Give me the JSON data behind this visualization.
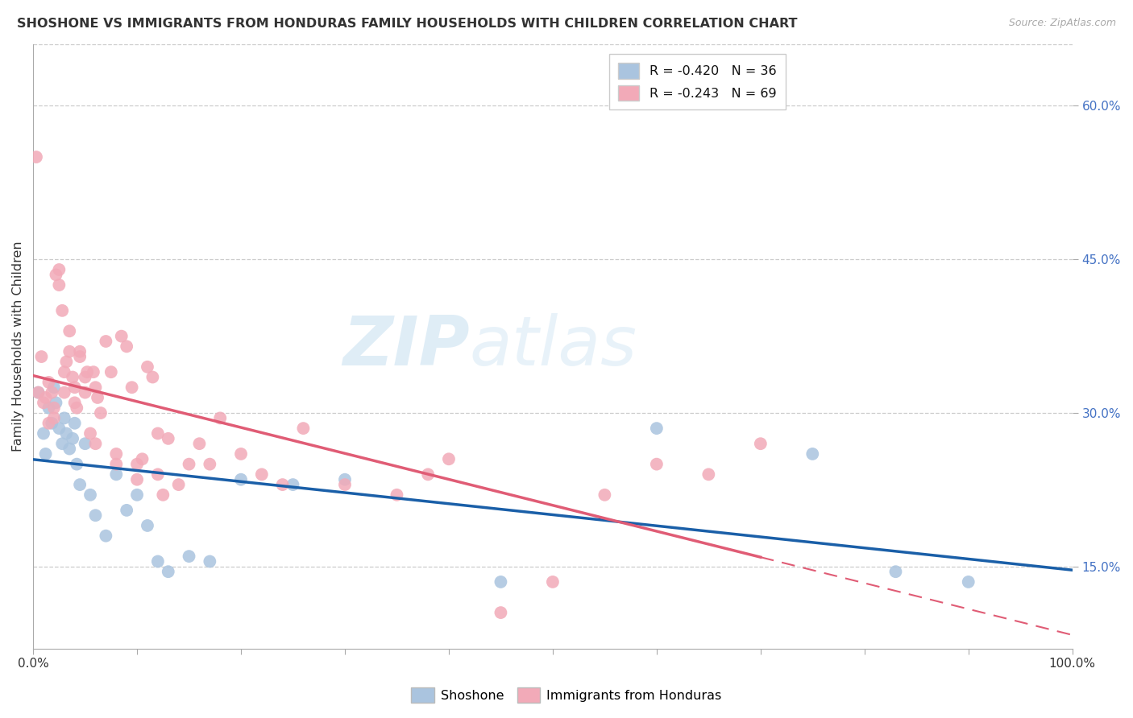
{
  "title": "SHOSHONE VS IMMIGRANTS FROM HONDURAS FAMILY HOUSEHOLDS WITH CHILDREN CORRELATION CHART",
  "source": "Source: ZipAtlas.com",
  "ylabel": "Family Households with Children",
  "xlim": [
    0.0,
    100.0
  ],
  "ylim": [
    7.0,
    66.0
  ],
  "ytick_values": [
    15.0,
    30.0,
    45.0,
    60.0
  ],
  "xtick_values": [
    0.0,
    10.0,
    20.0,
    30.0,
    40.0,
    50.0,
    60.0,
    70.0,
    80.0,
    90.0,
    100.0
  ],
  "watermark_zip": "ZIP",
  "watermark_atlas": "atlas",
  "shoshone_label": "R = -0.420   N = 36",
  "honduras_label": "R = -0.243   N = 69",
  "shoshone_dot_color": "#aac4df",
  "honduras_dot_color": "#f2aab8",
  "shoshone_line_color": "#1a5fa8",
  "honduras_line_color": "#e05c75",
  "legend_shoshone": "Shoshone",
  "legend_honduras": "Immigrants from Honduras",
  "shoshone_x": [
    0.5,
    1.0,
    1.2,
    1.5,
    1.8,
    2.0,
    2.2,
    2.5,
    2.8,
    3.0,
    3.2,
    3.5,
    3.8,
    4.0,
    4.2,
    4.5,
    5.0,
    5.5,
    6.0,
    7.0,
    8.0,
    9.0,
    10.0,
    11.0,
    12.0,
    13.0,
    15.0,
    17.0,
    20.0,
    25.0,
    30.0,
    45.0,
    60.0,
    75.0,
    83.0,
    90.0
  ],
  "shoshone_y": [
    32.0,
    28.0,
    26.0,
    30.5,
    29.0,
    32.5,
    31.0,
    28.5,
    27.0,
    29.5,
    28.0,
    26.5,
    27.5,
    29.0,
    25.0,
    23.0,
    27.0,
    22.0,
    20.0,
    18.0,
    24.0,
    20.5,
    22.0,
    19.0,
    15.5,
    14.5,
    16.0,
    15.5,
    23.5,
    23.0,
    23.5,
    13.5,
    28.5,
    26.0,
    14.5,
    13.5
  ],
  "honduras_x": [
    0.3,
    0.5,
    0.8,
    1.0,
    1.2,
    1.5,
    1.5,
    1.8,
    2.0,
    2.0,
    2.2,
    2.5,
    2.5,
    2.8,
    3.0,
    3.0,
    3.2,
    3.5,
    3.5,
    3.8,
    4.0,
    4.0,
    4.2,
    4.5,
    4.5,
    5.0,
    5.0,
    5.2,
    5.5,
    5.8,
    6.0,
    6.0,
    6.2,
    6.5,
    7.0,
    7.5,
    8.0,
    8.0,
    8.5,
    9.0,
    9.5,
    10.0,
    10.0,
    10.5,
    11.0,
    11.5,
    12.0,
    12.0,
    12.5,
    13.0,
    14.0,
    15.0,
    16.0,
    17.0,
    18.0,
    20.0,
    22.0,
    24.0,
    26.0,
    30.0,
    35.0,
    38.0,
    40.0,
    45.0,
    50.0,
    55.0,
    60.0,
    65.0,
    70.0
  ],
  "honduras_y": [
    55.0,
    32.0,
    35.5,
    31.0,
    31.5,
    33.0,
    29.0,
    32.0,
    30.5,
    29.5,
    43.5,
    44.0,
    42.5,
    40.0,
    34.0,
    32.0,
    35.0,
    38.0,
    36.0,
    33.5,
    32.5,
    31.0,
    30.5,
    36.0,
    35.5,
    33.5,
    32.0,
    34.0,
    28.0,
    34.0,
    27.0,
    32.5,
    31.5,
    30.0,
    37.0,
    34.0,
    26.0,
    25.0,
    37.5,
    36.5,
    32.5,
    25.0,
    23.5,
    25.5,
    34.5,
    33.5,
    28.0,
    24.0,
    22.0,
    27.5,
    23.0,
    25.0,
    27.0,
    25.0,
    29.5,
    26.0,
    24.0,
    23.0,
    28.5,
    23.0,
    22.0,
    24.0,
    25.5,
    10.5,
    13.5,
    22.0,
    25.0,
    24.0,
    27.0
  ],
  "grid_color": "#cccccc",
  "spine_color": "#aaaaaa",
  "ytick_color": "#4472c4",
  "title_color": "#333333",
  "source_color": "#aaaaaa"
}
